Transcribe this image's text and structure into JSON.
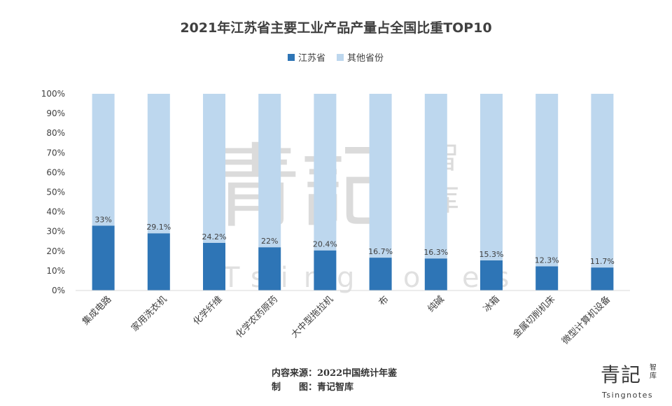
{
  "chart_data": {
    "type": "bar",
    "stacked": true,
    "title": "2021年江苏省主要工业产品产量占全国比重TOP10",
    "categories": [
      "集成电路",
      "家用洗衣机",
      "化学纤维",
      "化学农药原药",
      "大中型拖拉机",
      "布",
      "纯碱",
      "冰箱",
      "金属切削机床",
      "微型计算机设备"
    ],
    "series": [
      {
        "name": "江苏省",
        "color": "#2e75b6",
        "values": [
          33,
          29.1,
          24.2,
          22,
          20.4,
          16.7,
          16.3,
          15.3,
          12.3,
          11.7
        ]
      },
      {
        "name": "其他省份",
        "color": "#bdd7ee",
        "values": [
          67,
          70.9,
          75.8,
          78,
          79.6,
          83.3,
          83.7,
          84.7,
          87.7,
          88.3
        ]
      }
    ],
    "data_labels": [
      "33%",
      "29.1%",
      "24.2%",
      "22%",
      "20.4%",
      "16.7%",
      "16.3%",
      "15.3%",
      "12.3%",
      "11.7%"
    ],
    "yticks": [
      "0%",
      "10%",
      "20%",
      "30%",
      "40%",
      "50%",
      "60%",
      "70%",
      "80%",
      "90%",
      "100%"
    ],
    "ylim": [
      0,
      100
    ],
    "legend_position": "top-center",
    "grid": false
  },
  "footer": {
    "source": "内容来源：2022中国统计年鉴",
    "maker_label": "制",
    "maker_label2": "图：青记智库"
  },
  "watermark": {
    "big": "青記",
    "small1": "智",
    "small2": "库",
    "en": "Tsingnotes"
  },
  "logo": {
    "big": "青記",
    "small": "智库",
    "en": "Tsingnotes"
  }
}
